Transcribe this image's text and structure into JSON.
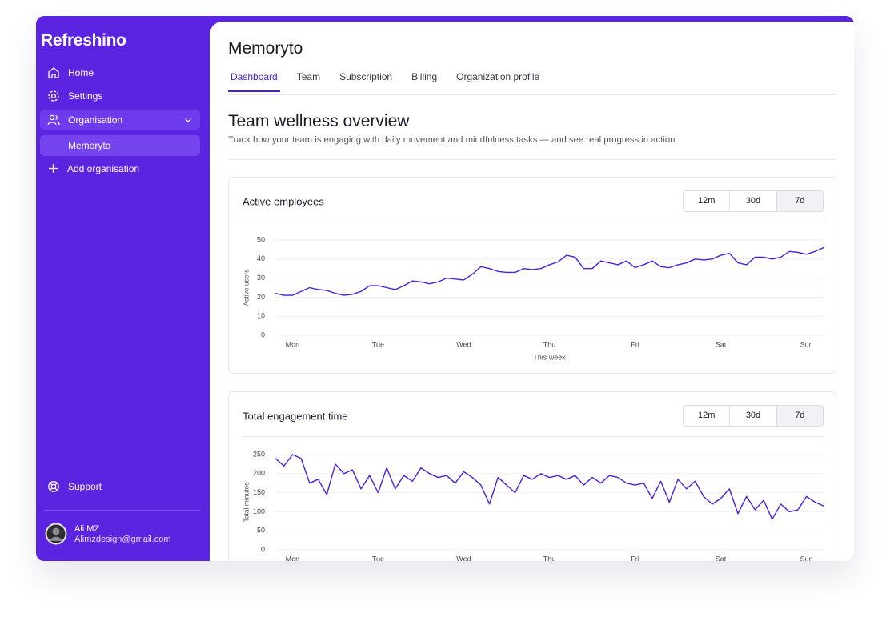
{
  "sidebar": {
    "brand": "Refreshino",
    "nav": [
      "Home",
      "Settings",
      "Organisation"
    ],
    "sub_item": "Memoryto",
    "add": "Add organisation",
    "support": "Support",
    "user": {
      "name": "Ali MZ",
      "email": "Alimzdesign@gmail.com"
    }
  },
  "header": {
    "title": "Memoryto",
    "tabs": [
      "Dashboard",
      "Team",
      "Subscription",
      "Billing",
      "Organization profile"
    ],
    "active_tab": 0
  },
  "section": {
    "title": "Team wellness overview",
    "subtitle": "Track how your team is engaging with daily movement and mindfulness tasks — and see real progress in action."
  },
  "chart_data": [
    {
      "type": "line",
      "title": "Active employees",
      "ranges": [
        "12m",
        "30d",
        "7d"
      ],
      "active_range": 2,
      "ylabel": "Active users",
      "xlabel": "This week",
      "color": "#4b1fd9",
      "grid": true,
      "xlim": [
        0,
        6.4
      ],
      "ylim": [
        0,
        50
      ],
      "yticks": [
        0,
        10,
        20,
        30,
        40,
        50
      ],
      "xticks": [
        {
          "value": 0.2,
          "label": "Mon"
        },
        {
          "value": 1.2,
          "label": "Tue"
        },
        {
          "value": 2.2,
          "label": "Wed"
        },
        {
          "value": 3.2,
          "label": "Thu"
        },
        {
          "value": 4.2,
          "label": "Fri"
        },
        {
          "value": 5.2,
          "label": "Sat"
        },
        {
          "value": 6.2,
          "label": "Sun"
        }
      ],
      "x": [
        0,
        0.1,
        0.2,
        0.3,
        0.4,
        0.5,
        0.6,
        0.7,
        0.8,
        0.9,
        1,
        1.1,
        1.2,
        1.3,
        1.4,
        1.5,
        1.6,
        1.7,
        1.8,
        1.9,
        2,
        2.1,
        2.2,
        2.3,
        2.4,
        2.5,
        2.6,
        2.7,
        2.8,
        2.9,
        3,
        3.1,
        3.2,
        3.3,
        3.4,
        3.5,
        3.6,
        3.7,
        3.8,
        3.9,
        4,
        4.1,
        4.2,
        4.3,
        4.4,
        4.5,
        4.6,
        4.7,
        4.8,
        4.9,
        5,
        5.1,
        5.2,
        5.3,
        5.4,
        5.5,
        5.6,
        5.7,
        5.8,
        5.9,
        6,
        6.1,
        6.2,
        6.3,
        6.4
      ],
      "values": [
        22,
        21,
        21,
        23,
        25,
        24,
        23.5,
        22,
        21,
        21.5,
        23,
        26,
        26,
        25,
        24,
        26,
        28.5,
        28,
        27,
        28,
        30,
        29.5,
        29,
        32,
        36,
        35,
        33.5,
        33,
        33,
        35,
        34.5,
        35,
        37,
        38.5,
        42,
        41,
        35,
        35,
        39,
        38,
        37,
        39,
        35.5,
        37,
        39,
        36,
        35.5,
        37,
        38,
        40,
        39.5,
        40,
        42,
        43,
        38,
        37,
        41,
        41,
        40,
        41,
        44,
        43.5,
        42.5,
        44,
        46
      ]
    },
    {
      "type": "line",
      "title": "Total engagement time",
      "ranges": [
        "12m",
        "30d",
        "7d"
      ],
      "active_range": 2,
      "ylabel": "Total minutes",
      "color": "#4b1fd9",
      "grid": true,
      "xlim": [
        0,
        6.4
      ],
      "ylim": [
        0,
        250
      ],
      "yticks": [
        0,
        50,
        100,
        150,
        200,
        250
      ],
      "xticks": [
        {
          "value": 0.2,
          "label": "Mon"
        },
        {
          "value": 1.2,
          "label": "Tue"
        },
        {
          "value": 2.2,
          "label": "Wed"
        },
        {
          "value": 3.2,
          "label": "Thu"
        },
        {
          "value": 4.2,
          "label": "Fri"
        },
        {
          "value": 5.2,
          "label": "Sat"
        },
        {
          "value": 6.2,
          "label": "Sun"
        }
      ],
      "x": [
        0,
        0.1,
        0.2,
        0.3,
        0.4,
        0.5,
        0.6,
        0.7,
        0.8,
        0.9,
        1,
        1.1,
        1.2,
        1.3,
        1.4,
        1.5,
        1.6,
        1.7,
        1.8,
        1.9,
        2,
        2.1,
        2.2,
        2.3,
        2.4,
        2.5,
        2.6,
        2.7,
        2.8,
        2.9,
        3,
        3.1,
        3.2,
        3.3,
        3.4,
        3.5,
        3.6,
        3.7,
        3.8,
        3.9,
        4,
        4.1,
        4.2,
        4.3,
        4.4,
        4.5,
        4.6,
        4.7,
        4.8,
        4.9,
        5,
        5.1,
        5.2,
        5.3,
        5.4,
        5.5,
        5.6,
        5.7,
        5.8,
        5.9,
        6,
        6.1,
        6.2,
        6.3,
        6.4
      ],
      "values": [
        240,
        220,
        250,
        240,
        175,
        185,
        145,
        225,
        200,
        210,
        160,
        195,
        150,
        215,
        160,
        195,
        180,
        215,
        200,
        190,
        195,
        175,
        205,
        190,
        170,
        120,
        190,
        170,
        150,
        195,
        185,
        200,
        190,
        195,
        185,
        195,
        170,
        190,
        175,
        195,
        190,
        175,
        170,
        175,
        135,
        180,
        125,
        185,
        160,
        180,
        140,
        120,
        135,
        160,
        95,
        140,
        105,
        130,
        80,
        120,
        100,
        105,
        140,
        125,
        115
      ]
    }
  ]
}
